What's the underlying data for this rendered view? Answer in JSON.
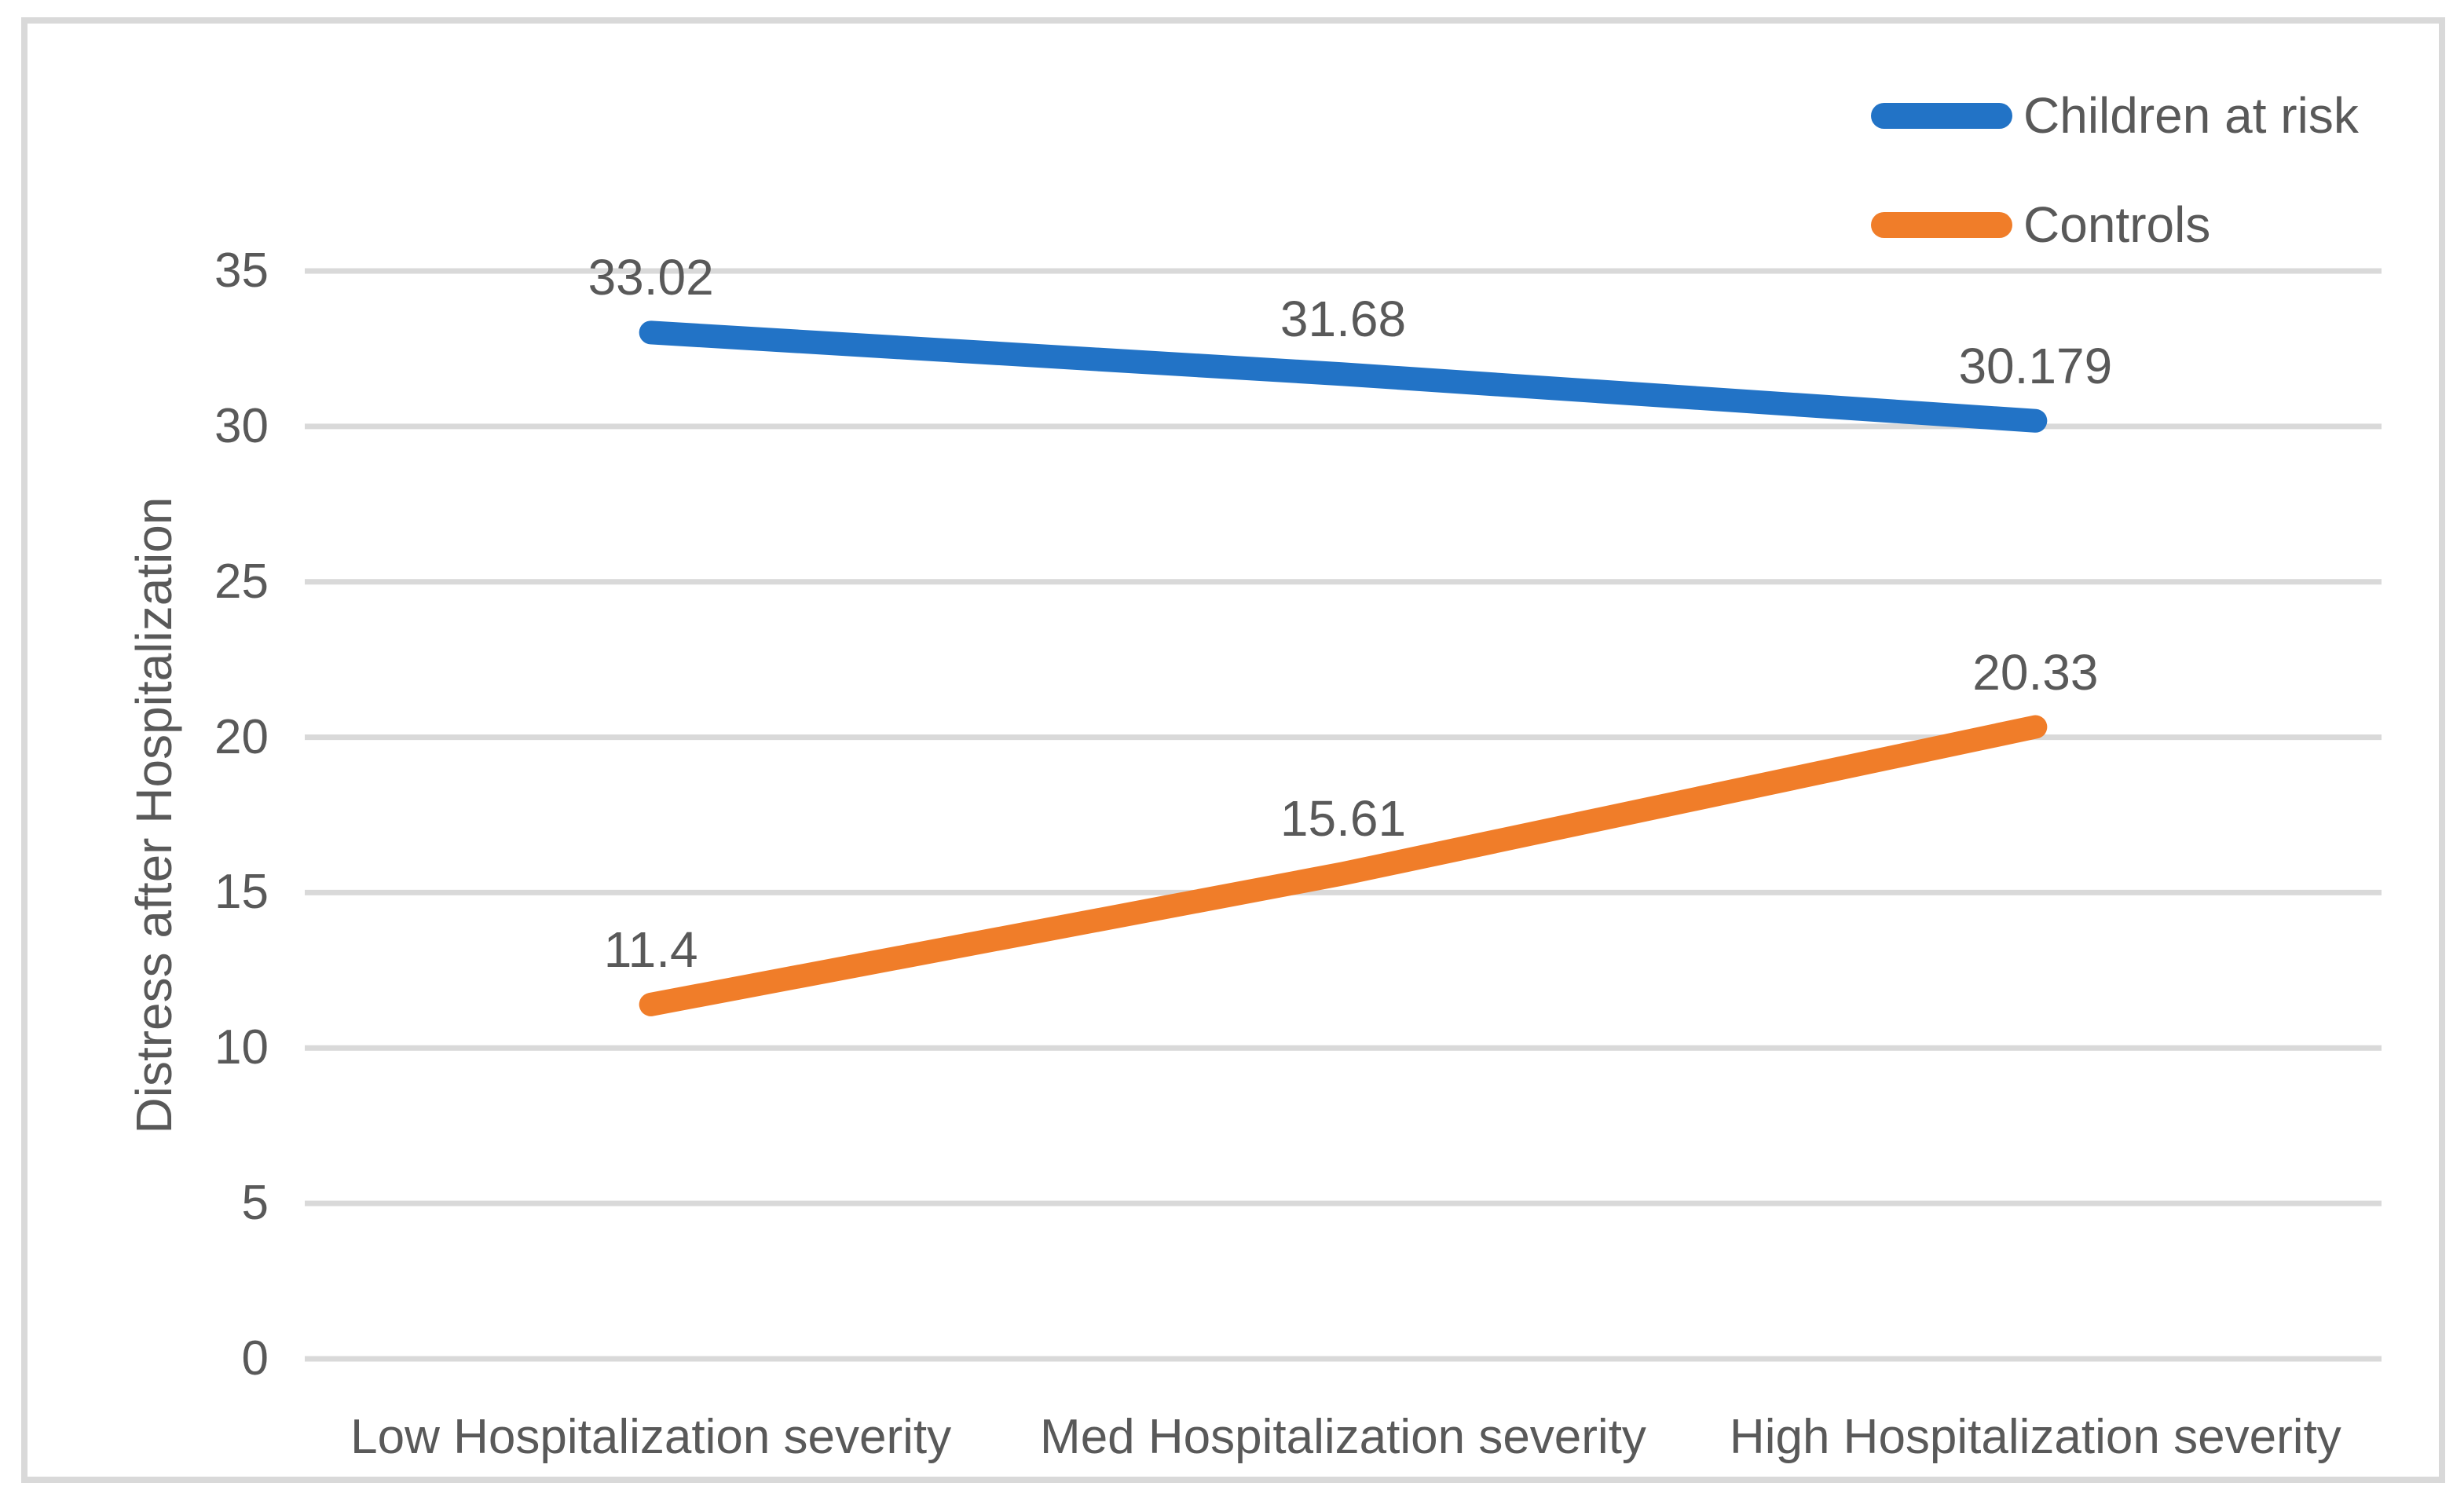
{
  "chart_data": {
    "type": "line",
    "title": "",
    "categories": [
      "Low Hospitalization severity",
      "Med Hospitalization severity",
      "High Hospitalization severity"
    ],
    "series": [
      {
        "name": "Children at risk",
        "color": "#2273C6",
        "values": [
          33.02,
          31.68,
          30.179
        ]
      },
      {
        "name": "Controls",
        "color": "#F07D29",
        "values": [
          11.4,
          15.61,
          20.33
        ]
      }
    ],
    "xlabel": "",
    "ylabel": "Distress after Hospitalization",
    "ylim": [
      0,
      35
    ],
    "yticks": [
      0,
      5,
      10,
      15,
      20,
      25,
      30,
      35
    ],
    "grid": true,
    "data_labels": true,
    "legend_position": "top-right"
  },
  "styles": {
    "background": "#FFFFFF",
    "text_color": "#595959",
    "gridline_color": "#D9D9D9",
    "border_color": "#D9D9D9"
  }
}
